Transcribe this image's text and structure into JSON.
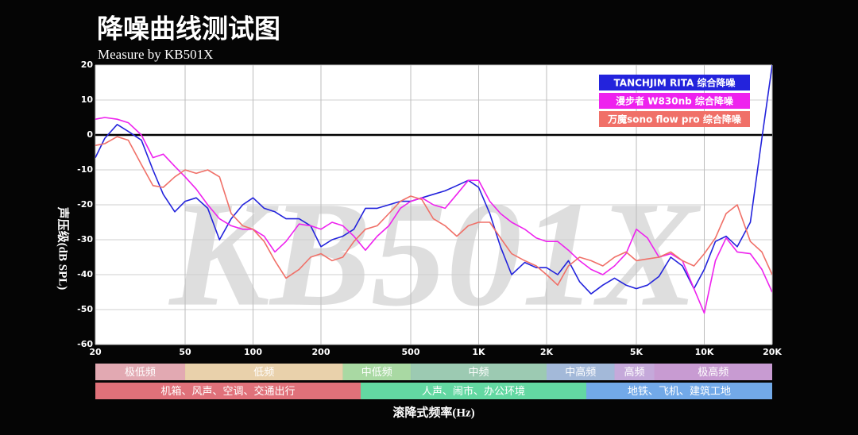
{
  "chart_data": {
    "type": "line",
    "title": "降噪曲线测试图",
    "subtitle": "Measure by KB501X",
    "watermark": "KB501X",
    "x_label": "滚降式频率(Hz)",
    "y_label": "声压级(dB SPL)",
    "x_scale": "log",
    "xlim": [
      20,
      20000
    ],
    "ylim": [
      -60,
      20
    ],
    "xticks": [
      20,
      50,
      100,
      200,
      500,
      {
        "value": 1000,
        "label": "1K"
      },
      {
        "value": 2000,
        "label": "2K"
      },
      {
        "value": 5000,
        "label": "5K"
      },
      {
        "value": 10000,
        "label": "10K"
      },
      {
        "value": 20000,
        "label": "20K"
      }
    ],
    "yticks": [
      20,
      10,
      0,
      -10,
      -20,
      -30,
      -40,
      -50,
      -60
    ],
    "grid": true,
    "zero_line": true,
    "legend": "upper right",
    "x": [
      20,
      22,
      25,
      28,
      32,
      36,
      40,
      45,
      50,
      56,
      63,
      71,
      80,
      90,
      100,
      112,
      125,
      140,
      160,
      180,
      200,
      224,
      250,
      280,
      315,
      355,
      400,
      450,
      500,
      560,
      630,
      710,
      800,
      900,
      1000,
      1120,
      1250,
      1400,
      1600,
      1800,
      2000,
      2240,
      2500,
      2800,
      3150,
      3550,
      4000,
      4500,
      5000,
      5600,
      6300,
      7100,
      8000,
      9000,
      10000,
      11200,
      12500,
      14000,
      16000,
      18000,
      20000
    ],
    "series": [
      {
        "name": "TANCHJIM RITA 综合降噪",
        "color": "#2323dc",
        "values": [
          -6.5,
          -1,
          3,
          1,
          -1.5,
          -10,
          -17,
          -22,
          -19,
          -18,
          -21,
          -30,
          -24,
          -20,
          -18,
          -21,
          -22,
          -24,
          -24,
          -26,
          -32,
          -30,
          -29,
          -27,
          -21,
          -21,
          -20,
          -19,
          -19,
          -18,
          -17,
          -16,
          -14.5,
          -13,
          -15,
          -22.5,
          -32,
          -40,
          -36.5,
          -38,
          -38,
          -40,
          -36,
          -42,
          -45.5,
          -43,
          -41,
          -43,
          -44,
          -43,
          -40.5,
          -35,
          -37.5,
          -44,
          -38.5,
          -30.5,
          -29,
          -32,
          -25,
          -1,
          20
        ]
      },
      {
        "name": "漫步者 W830nb 综合降噪",
        "color": "#ee22ee",
        "values": [
          4.5,
          5,
          4.5,
          3.5,
          0,
          -6.5,
          -5.5,
          -9,
          -12,
          -15.5,
          -20,
          -24,
          -26,
          -27,
          -27,
          -29,
          -33.5,
          -30.5,
          -25.5,
          -26,
          -27,
          -25,
          -26,
          -29,
          -33,
          -29,
          -26,
          -21,
          -19,
          -18,
          -20,
          -21,
          -17,
          -13,
          -13,
          -19,
          -22.5,
          -25,
          -27,
          -29.5,
          -30.5,
          -30.5,
          -33,
          -36,
          -38.5,
          -40,
          -37.5,
          -34,
          -27,
          -29.5,
          -35,
          -34,
          -36,
          -44,
          -51,
          -36,
          -29.5,
          -33.5,
          -34,
          -38.5,
          -45
        ]
      },
      {
        "name": "万魔sono flow pro 综合降噪",
        "color": "#f07068",
        "values": [
          -3,
          -2.5,
          -0.5,
          -1.5,
          -8.5,
          -14.5,
          -15,
          -12,
          -10,
          -11,
          -10,
          -12,
          -22.5,
          -26,
          -27,
          -30.5,
          -36,
          -41,
          -38.5,
          -35,
          -34,
          -36,
          -35,
          -30.5,
          -27,
          -26,
          -22.5,
          -19,
          -17.5,
          -18.5,
          -24,
          -26,
          -29,
          -26,
          -25,
          -25,
          -29.5,
          -34,
          -36,
          -37.5,
          -40,
          -43,
          -37.5,
          -35,
          -36,
          -37.5,
          -35,
          -33.5,
          -36,
          -35.5,
          -35,
          -33.5,
          -36,
          -37.5,
          -34,
          -29.5,
          -22.5,
          -20,
          -30.5,
          -33.5,
          -40
        ]
      }
    ],
    "bands": [
      [
        {
          "label": "极低频",
          "range": [
            20,
            50
          ],
          "color": "#e2a9b2"
        },
        {
          "label": "低频",
          "range": [
            50,
            250
          ],
          "color": "#e9d1ab"
        },
        {
          "label": "中低频",
          "range": [
            250,
            500
          ],
          "color": "#a9d9a3"
        },
        {
          "label": "中频",
          "range": [
            500,
            2000
          ],
          "color": "#9ccab2"
        },
        {
          "label": "中高频",
          "range": [
            2000,
            4000
          ],
          "color": "#a3b9d9"
        },
        {
          "label": "高频",
          "range": [
            4000,
            6000
          ],
          "color": "#c5a9da"
        },
        {
          "label": "极高频",
          "range": [
            6000,
            20000
          ],
          "color": "#c89bd2"
        }
      ],
      [
        {
          "label": "机箱、风声、空调、交通出行",
          "range": [
            20,
            300
          ],
          "color": "#e0717a"
        },
        {
          "label": "人声、闹市、办公环境",
          "range": [
            300,
            3000
          ],
          "color": "#63d8a2"
        },
        {
          "label": "地铁、飞机、建筑工地",
          "range": [
            3000,
            20000
          ],
          "color": "#72a9e8"
        }
      ]
    ]
  }
}
